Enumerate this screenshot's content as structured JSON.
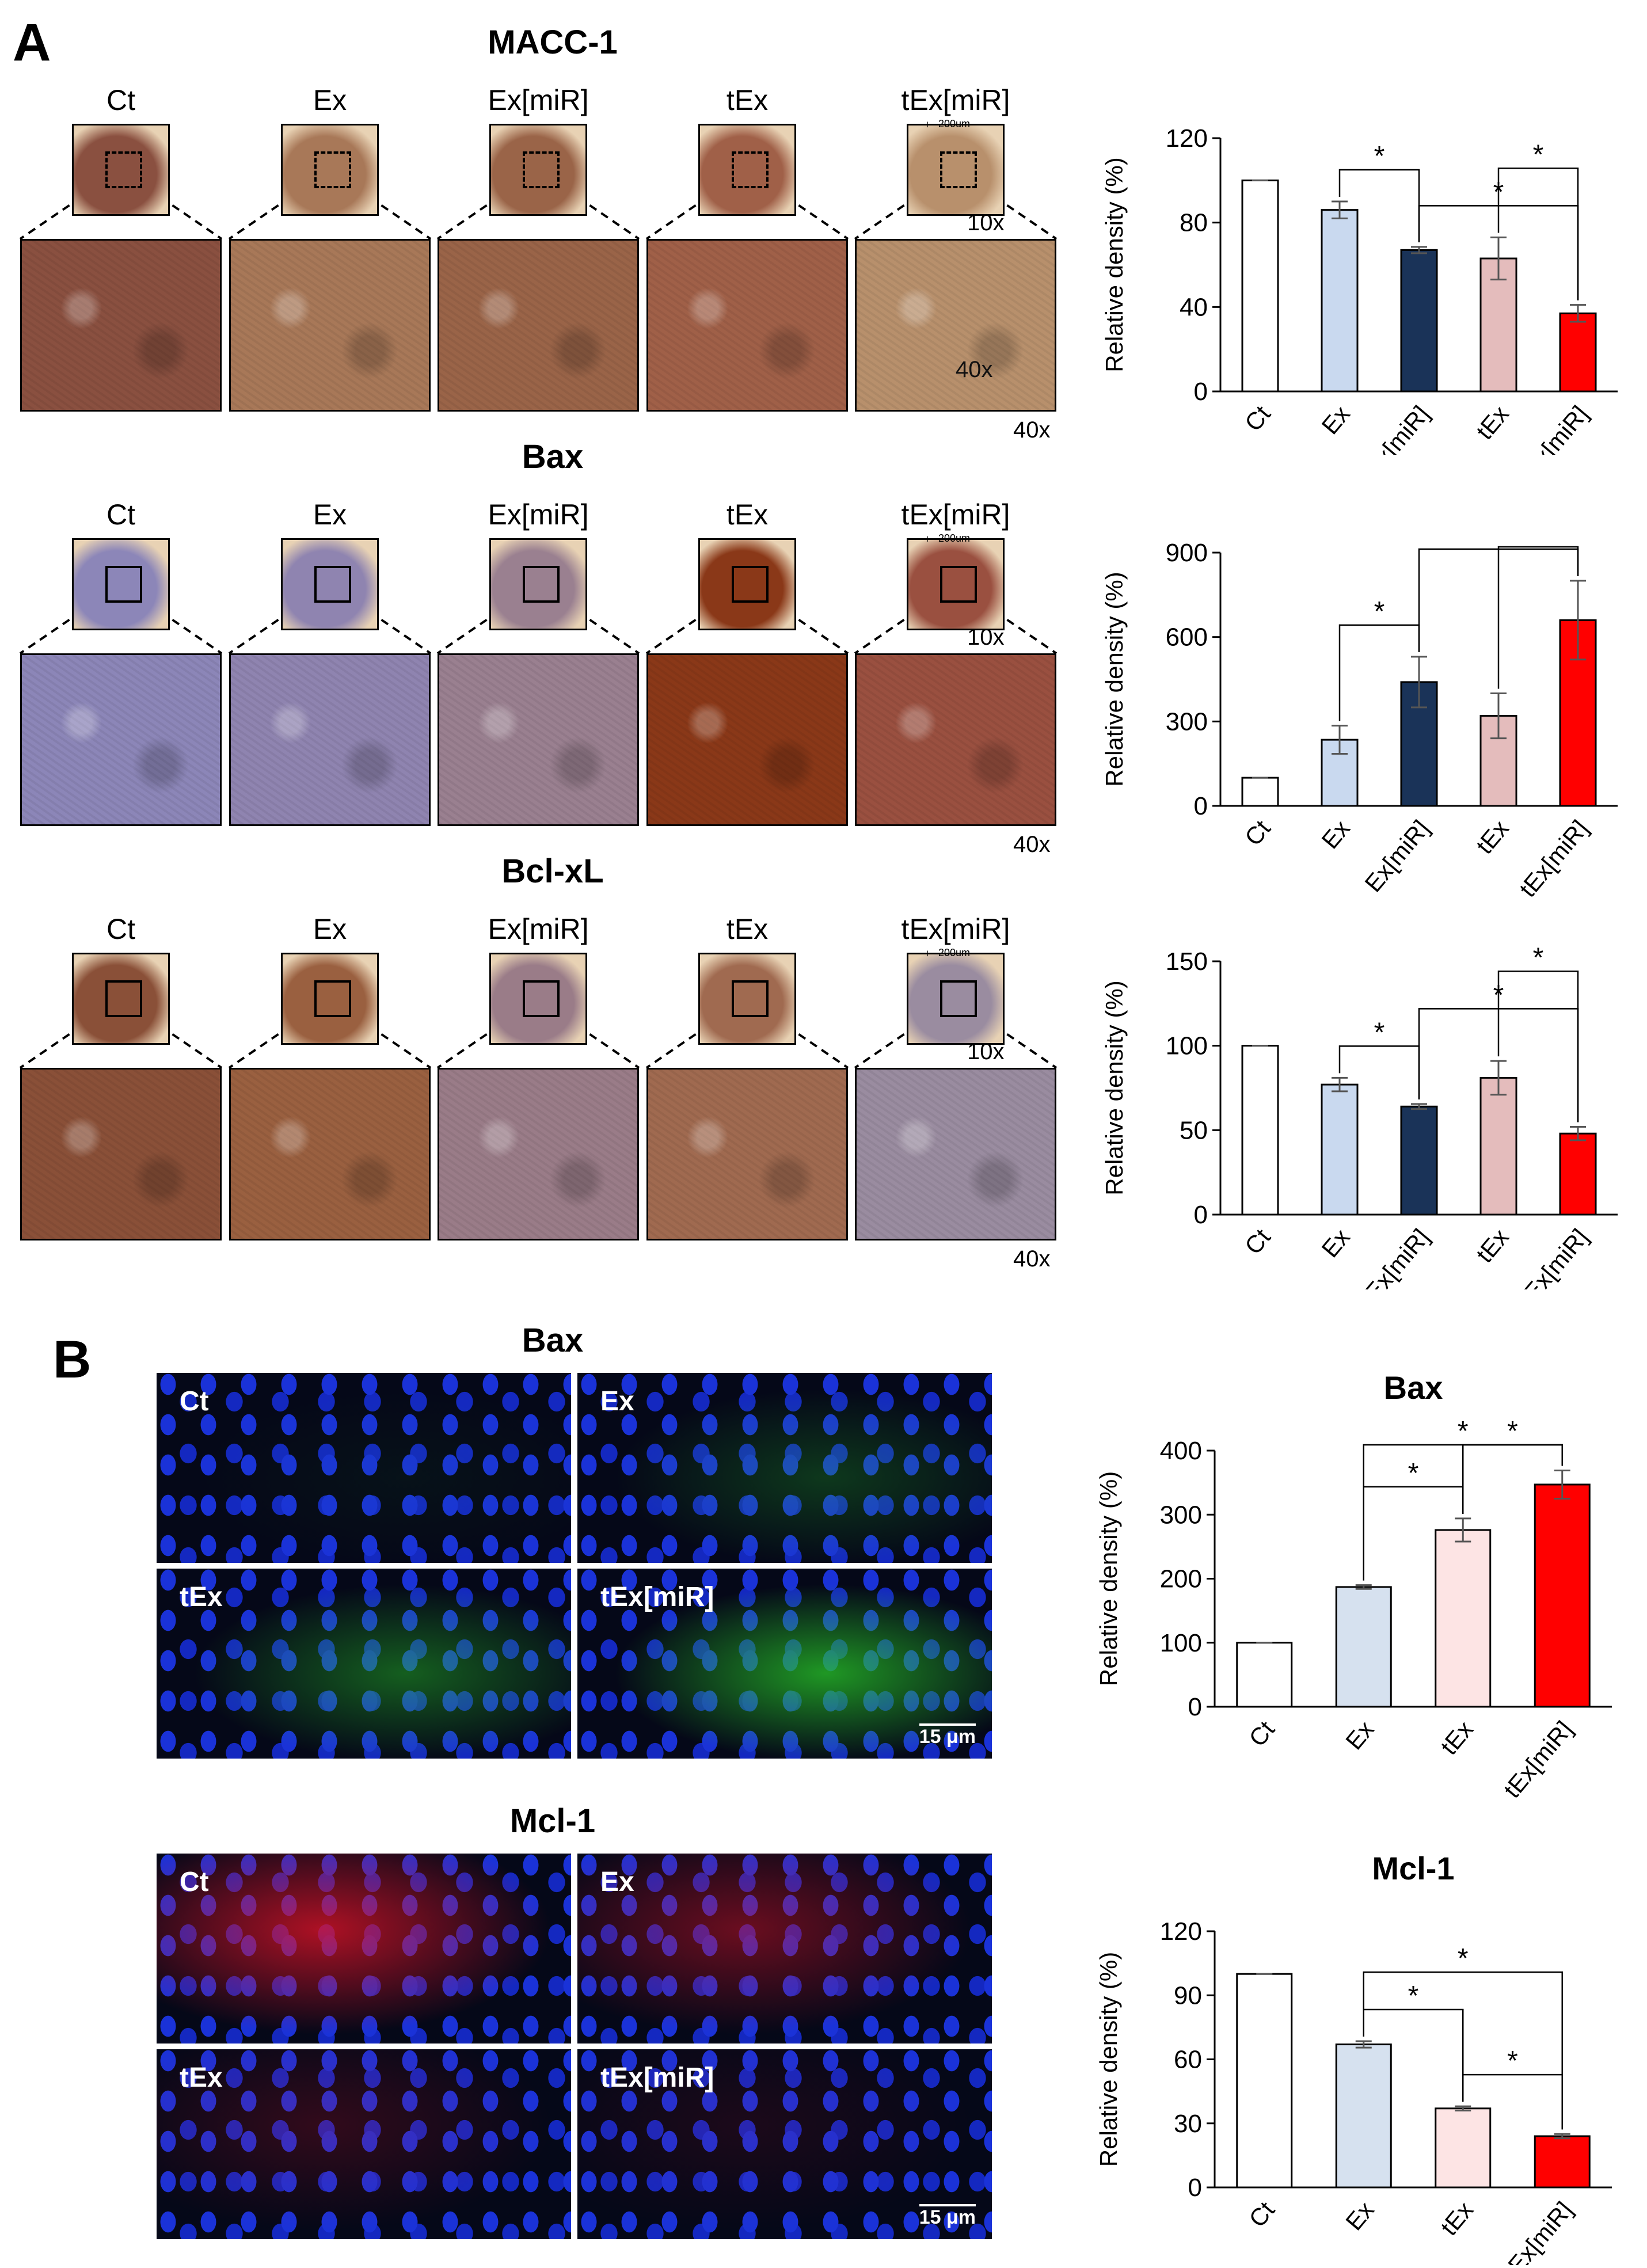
{
  "panelA": {
    "letter": "A",
    "sections": [
      {
        "title": "MACC-1",
        "labels": [
          "Ct",
          "Ex",
          "Ex[miR]",
          "tEx",
          "tEx[miR]"
        ],
        "scale_label": "200um",
        "mag_low": "10x",
        "mag_high": "40x",
        "mag_inline": "40x",
        "tissue": [
          "#8a5040",
          "#a87858",
          "#9a6448",
          "#a06048",
          "#b8906c"
        ]
      },
      {
        "title": "Bax",
        "labels": [
          "Ct",
          "Ex",
          "Ex[miR]",
          "tEx",
          "tEx[miR]"
        ],
        "scale_label": "200um",
        "mag_low": "10x",
        "mag_high": "40x",
        "tissue": [
          "#8c86b8",
          "#8f84b0",
          "#9a8090",
          "#8a3818",
          "#9a5040"
        ]
      },
      {
        "title": "Bcl-xL",
        "labels": [
          "Ct",
          "Ex",
          "Ex[miR]",
          "tEx",
          "tEx[miR]"
        ],
        "scale_label": "200um",
        "mag_low": "10x",
        "mag_high": "40x",
        "tissue": [
          "#8a5038",
          "#9a6040",
          "#9a7c88",
          "#a06a50",
          "#9a8ca0"
        ]
      }
    ]
  },
  "panelB": {
    "letter": "B",
    "sections": [
      {
        "title": "Bax",
        "tiles": [
          "Ct",
          "Ex",
          "tEx",
          "tEx[miR]"
        ],
        "scale_label": "15 μm",
        "channel": "green"
      },
      {
        "title": "Mcl-1",
        "tiles": [
          "Ct",
          "Ex",
          "tEx",
          "tEx[miR]"
        ],
        "scale_label": "15 μm",
        "channel": "red"
      }
    ]
  },
  "chart_data": [
    {
      "type": "bar",
      "title": "",
      "ylabel": "Relative density (%)",
      "categories": [
        "Ct",
        "Ex",
        "Ex[miR]",
        "tEx",
        "tEx[miR]"
      ],
      "values": [
        100,
        86,
        67,
        63,
        37
      ],
      "errors": [
        0,
        4,
        1.5,
        10,
        4
      ],
      "colors": [
        "#ffffff",
        "#c9d9ef",
        "#1a3358",
        "#e4bcbc",
        "#ff0000"
      ],
      "ylim": [
        0,
        120
      ],
      "yticks": [
        0,
        40,
        80,
        120
      ],
      "significance": [
        {
          "from": "Ex",
          "to": "Ex[miR]",
          "label": "*"
        },
        {
          "from": "Ex[miR]",
          "to": "tEx[miR]",
          "label": "*"
        },
        {
          "from": "tEx",
          "to": "tEx[miR]",
          "label": "*"
        }
      ]
    },
    {
      "type": "bar",
      "title": "",
      "ylabel": "Relative density (%)",
      "categories": [
        "Ct",
        "Ex",
        "Ex[miR]",
        "tEx",
        "tEx[miR]"
      ],
      "values": [
        100,
        235,
        440,
        320,
        660
      ],
      "errors": [
        0,
        50,
        90,
        80,
        140
      ],
      "colors": [
        "#ffffff",
        "#c9d9ef",
        "#1a3358",
        "#e4bcbc",
        "#ff0000"
      ],
      "ylim": [
        0,
        900
      ],
      "yticks": [
        0,
        300,
        600,
        900
      ],
      "significance": [
        {
          "from": "Ex",
          "to": "Ex[miR]",
          "label": "*"
        },
        {
          "from": "Ex[miR]",
          "to": "tEx[miR]",
          "label": "*"
        },
        {
          "from": "tEx",
          "to": "tEx[miR]",
          "label": "*"
        }
      ]
    },
    {
      "type": "bar",
      "title": "",
      "ylabel": "Relative density (%)",
      "categories": [
        "Ct",
        "Ex",
        "Ex[miR]",
        "tEx",
        "tEx[miR]"
      ],
      "values": [
        100,
        77,
        64,
        81,
        48
      ],
      "errors": [
        0,
        4,
        1.5,
        10,
        4
      ],
      "colors": [
        "#ffffff",
        "#c9d9ef",
        "#1a3358",
        "#e4bcbc",
        "#ff0000"
      ],
      "ylim": [
        0,
        150
      ],
      "yticks": [
        0,
        50,
        100,
        150
      ],
      "significance": [
        {
          "from": "Ex",
          "to": "Ex[miR]",
          "label": "*"
        },
        {
          "from": "Ex[miR]",
          "to": "tEx[miR]",
          "label": "*"
        },
        {
          "from": "tEx",
          "to": "tEx[miR]",
          "label": "*"
        }
      ]
    },
    {
      "type": "bar",
      "title": "Bax",
      "ylabel": "Relative density (%)",
      "categories": [
        "Ct",
        "Ex",
        "tEx",
        "tEx[miR]"
      ],
      "values": [
        100,
        187,
        276,
        347
      ],
      "errors": [
        0,
        3,
        18,
        22
      ],
      "colors": [
        "#ffffff",
        "#d6e1ef",
        "#fde4e4",
        "#ff0000"
      ],
      "ylim": [
        0,
        400
      ],
      "yticks": [
        0,
        100,
        200,
        300,
        400
      ],
      "significance": [
        {
          "from": "Ex",
          "to": "tEx",
          "label": "*"
        },
        {
          "from": "Ex",
          "to": "tEx[miR]",
          "label": "*"
        },
        {
          "from": "tEx",
          "to": "tEx[miR]",
          "label": "*"
        }
      ]
    },
    {
      "type": "bar",
      "title": "Mcl-1",
      "ylabel": "Relative density (%)",
      "categories": [
        "Ct",
        "Ex",
        "tEx",
        "tEx[miR]"
      ],
      "values": [
        100,
        67,
        37,
        24
      ],
      "errors": [
        0,
        1.5,
        1,
        1
      ],
      "colors": [
        "#ffffff",
        "#d6e1ef",
        "#fde4e4",
        "#ff0000"
      ],
      "ylim": [
        0,
        120
      ],
      "yticks": [
        0,
        30,
        60,
        90,
        120
      ],
      "significance": [
        {
          "from": "Ex",
          "to": "tEx",
          "label": "*"
        },
        {
          "from": "Ex",
          "to": "tEx[miR]",
          "label": "*"
        },
        {
          "from": "tEx",
          "to": "tEx[miR]",
          "label": "*"
        }
      ]
    }
  ]
}
